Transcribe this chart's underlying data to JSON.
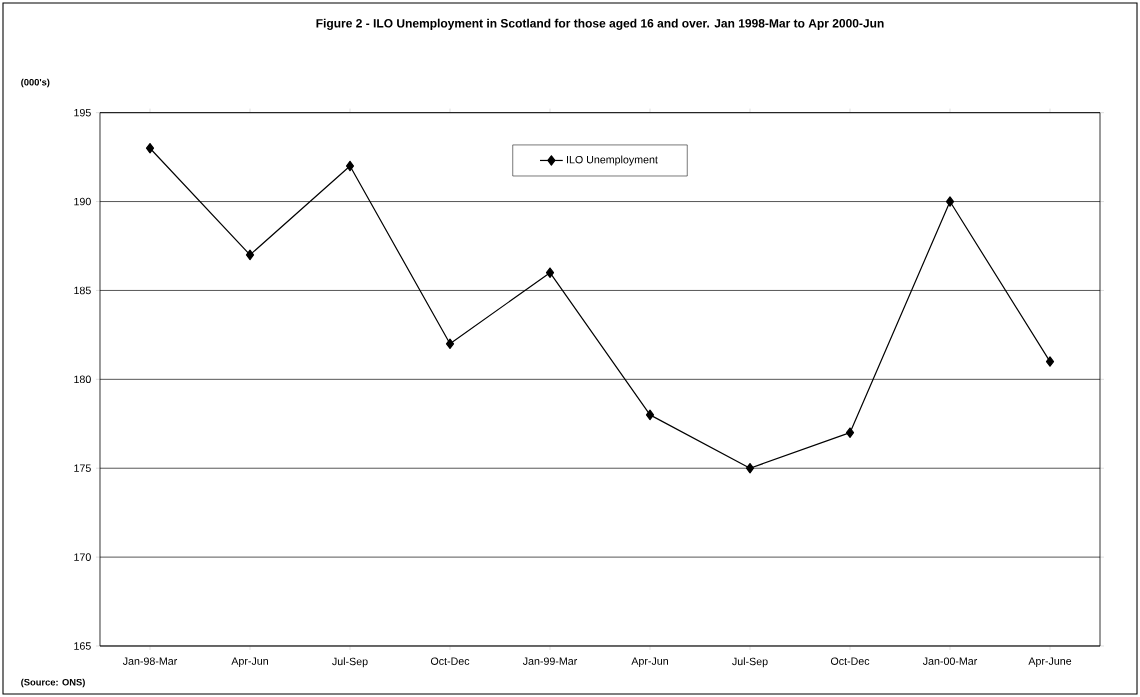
{
  "chart_data": {
    "type": "line",
    "title": "Figure 2 - ILO Unemployment in Scotland for those aged 16 and over. Jan 1998-Mar to Apr 2000-Jun",
    "ylabel": "(000's)",
    "categories": [
      "Jan-98-Mar",
      "Apr-Jun",
      "Jul-Sep",
      "Oct-Dec",
      "Jan-99-Mar",
      "Apr-Jun",
      "Jul-Sep",
      "Oct-Dec",
      "Jan-00-Mar",
      "Apr-June"
    ],
    "series": [
      {
        "name": "ILO Unemployment",
        "color": "#000000",
        "values": [
          193,
          187,
          192,
          182,
          186,
          178,
          175,
          177,
          190,
          181
        ]
      }
    ],
    "ylim": [
      165,
      195
    ],
    "yticks": [
      165,
      170,
      175,
      180,
      185,
      190,
      195
    ],
    "grid": "y",
    "legend": "top",
    "marker": "diamond",
    "line_style": "solid",
    "annotations": [
      "(Source: ONS)"
    ]
  }
}
